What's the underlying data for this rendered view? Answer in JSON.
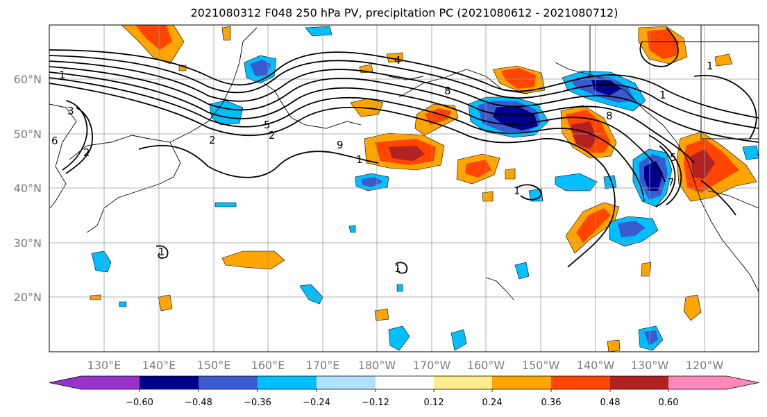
{
  "title": "2021080312 F048 250 hPa PV, precipitation PC (2021080612 - 2021080712)",
  "map": {
    "lat_labels": [
      "60°N",
      "50°N",
      "40°N",
      "30°N",
      "20°N"
    ],
    "lon_labels": [
      "130°E",
      "140°E",
      "150°E",
      "160°E",
      "170°E",
      "180°W",
      "170°W",
      "160°W",
      "150°W",
      "140°W",
      "130°W",
      "120°W"
    ],
    "pv_contour_labels": [
      "1",
      "3",
      "6",
      "2",
      "2",
      "5",
      "2",
      "9",
      "1",
      "8",
      "4",
      "8",
      "1",
      "5",
      "7",
      "1",
      "1",
      "1",
      "1"
    ]
  },
  "colorbar": {
    "tick_labels": [
      "−0.60",
      "−0.48",
      "−0.36",
      "−0.24",
      "−0.12",
      "0.12",
      "0.24",
      "0.36",
      "0.48",
      "0.60"
    ],
    "colors": [
      "#9932cc",
      "#00008b",
      "#3a5bd0",
      "#00bfff",
      "#b0e2ff",
      "#ffffff",
      "#ffec8b",
      "#ffa500",
      "#ff4500",
      "#b22222",
      "#ff88b8"
    ]
  }
}
